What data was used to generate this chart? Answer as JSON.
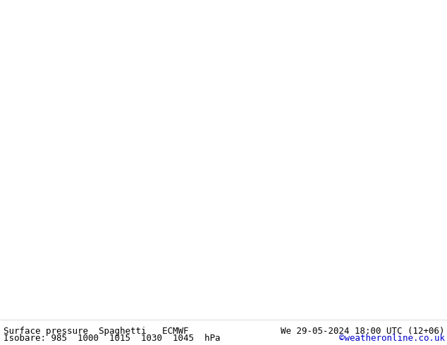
{
  "title_left": "Surface pressure  Spaghetti   ECMWF",
  "title_right": "We 29-05-2024 18:00 UTC (12+06)",
  "subtitle_left": "Isobare: 985  1000  1015  1030  1045  hPa",
  "subtitle_right": "©weatheronline.co.uk",
  "subtitle_right_color": "#0000cc",
  "background_color": "#ffffff",
  "text_color": "#000000",
  "footer_fontsize": 9,
  "figsize": [
    6.34,
    4.9
  ],
  "dpi": 100,
  "land_color": "#c8e6a0",
  "ocean_color": "#e8e8e8",
  "lake_color": "#e8e8e8",
  "coastline_color": "#888888",
  "border_color": "#aaaaaa",
  "isobar_colors": {
    "985": "#cc00cc",
    "1000": "#0000ff",
    "1015": "#00cc00",
    "1030": "#ff8800",
    "1045": "#ff0000"
  },
  "isobar_pressures": [
    985,
    1000,
    1015,
    1030,
    1045
  ],
  "extent": [
    -70,
    50,
    25,
    75
  ],
  "n_members": 51,
  "random_seed": 42,
  "contour_alpha": 0.7,
  "contour_lw": 0.8
}
